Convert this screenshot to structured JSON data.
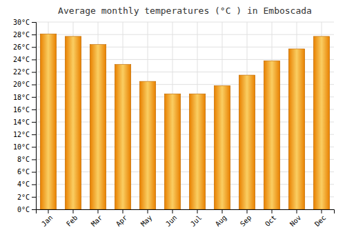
{
  "chart_data": {
    "type": "bar",
    "title": "Average monthly temperatures (°C ) in Emboscada",
    "categories": [
      "Jan",
      "Feb",
      "Mar",
      "Apr",
      "May",
      "Jun",
      "Jul",
      "Aug",
      "Sep",
      "Oct",
      "Nov",
      "Dec"
    ],
    "values": [
      28.1,
      27.7,
      26.4,
      23.2,
      20.5,
      18.5,
      18.5,
      19.8,
      21.5,
      23.8,
      25.7,
      27.7
    ],
    "color": "#E88000",
    "ylim": [
      0,
      30
    ],
    "yticks": [
      {
        "value": 0,
        "label": "0°C"
      },
      {
        "value": 2,
        "label": "2°C"
      },
      {
        "value": 4,
        "label": "4°C"
      },
      {
        "value": 6,
        "label": "6°C"
      },
      {
        "value": 8,
        "label": "8°C"
      },
      {
        "value": 10,
        "label": "10°C"
      },
      {
        "value": 12,
        "label": "12°C"
      },
      {
        "value": 14,
        "label": "14°C"
      },
      {
        "value": 16,
        "label": "16°C"
      },
      {
        "value": 18,
        "label": "18°C"
      },
      {
        "value": 20,
        "label": "20°C"
      },
      {
        "value": 22,
        "label": "22°C"
      },
      {
        "value": 24,
        "label": "24°C"
      },
      {
        "value": 26,
        "label": "26°C"
      },
      {
        "value": 28,
        "label": "28°C"
      },
      {
        "value": 30,
        "label": "30°C"
      }
    ],
    "grid": true
  }
}
